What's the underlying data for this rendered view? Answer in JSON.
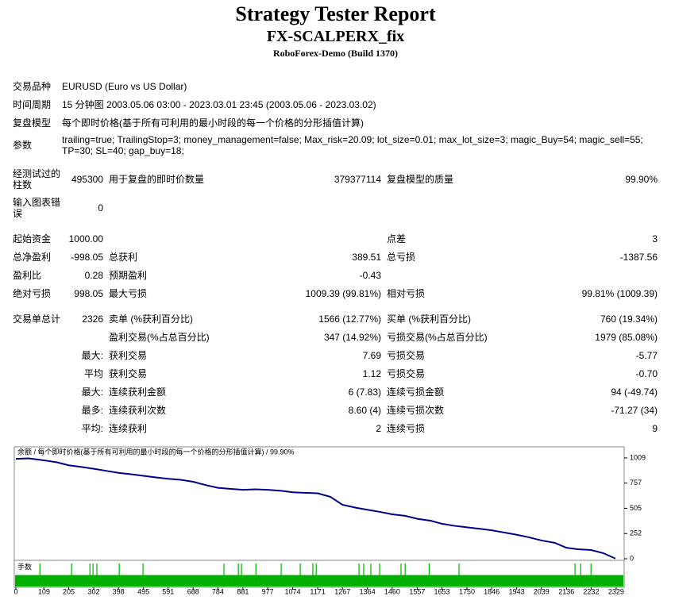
{
  "header": {
    "title": "Strategy Tester Report",
    "subtitle": "FX-SCALPERX_fix",
    "broker": "RoboForex-Demo (Build 1370)"
  },
  "report": {
    "sections": [
      [
        [
          "交易品种",
          "EURUSD (Euro vs US Dollar)"
        ],
        [
          "时间周期",
          "15 分钟图 2003.05.06 03:00 - 2023.03.01 23:45 (2003.05.06 - 2023.03.02)"
        ],
        [
          "复盘模型",
          "每个即时价格(基于所有可利用的最小时段的每一个价格的分形插值计算)"
        ],
        [
          "参数",
          "trailing=true; TrailingStop=3; money_management=false; Max_risk=20.09; lot_size=0.01; max_lot_size=3; magic_Buy=54; magic_sell=55; TP=30; SL=40; gap_buy=18;"
        ]
      ],
      [
        [
          "经测试过的柱数",
          "495300",
          "用于复盘的即时价数量",
          "379377114",
          "复盘模型的质量",
          "99.90%"
        ],
        [
          "输入图表错误",
          "0",
          null,
          null,
          null,
          null
        ]
      ],
      [
        [
          "起始资金",
          "1000.00",
          null,
          null,
          "点差",
          "3"
        ],
        [
          "总净盈利",
          "-998.05",
          "总获利",
          "389.51",
          "总亏损",
          "-1387.56"
        ],
        [
          "盈利比",
          "0.28",
          "预期盈利",
          "-0.43",
          null,
          null
        ],
        [
          "绝对亏损",
          "998.05",
          "最大亏损",
          "1009.39 (99.81%)",
          "相对亏损",
          "99.81% (1009.39)"
        ]
      ],
      [
        [
          "交易单总计",
          "2326",
          "卖单 (%获利百分比)",
          "1566 (12.77%)",
          "买单 (%获利百分比)",
          "760 (19.34%)"
        ],
        [
          null,
          null,
          "盈利交易(%占总百分比)",
          "347 (14.92%)",
          "亏损交易(%占总百分比)",
          "1979 (85.08%)"
        ],
        [
          null,
          "最大:",
          "获利交易",
          "7.69",
          "亏损交易",
          "-5.77"
        ],
        [
          null,
          "平均",
          "获利交易",
          "1.12",
          "亏损交易",
          "-0.70"
        ],
        [
          null,
          "最大:",
          "连续获利金额",
          "6 (7.83)",
          "连续亏损金额",
          "94 (-49.74)"
        ],
        [
          null,
          "最多:",
          "连续获利次数",
          "8.60 (4)",
          "连续亏损次数",
          "-71.27 (34)"
        ],
        [
          null,
          "平均:",
          "连续获利",
          "2",
          "连续亏损",
          "9"
        ]
      ]
    ]
  },
  "chart_data": {
    "type": "line",
    "title": "余额 / 每个即时价格(基于所有可利用的最小时段的每一个价格的分形插值计算) / 99.90%",
    "x": [
      0,
      50,
      109,
      160,
      205,
      250,
      302,
      350,
      398,
      450,
      495,
      540,
      591,
      640,
      688,
      740,
      784,
      830,
      881,
      930,
      977,
      1030,
      1074,
      1120,
      1171,
      1220,
      1267,
      1320,
      1364,
      1410,
      1460,
      1510,
      1557,
      1610,
      1653,
      1700,
      1750,
      1800,
      1846,
      1900,
      1943,
      1990,
      2039,
      2090,
      2136,
      2180,
      2232,
      2280,
      2326
    ],
    "series": [
      {
        "color": "#00008b",
        "values": [
          1000,
          1005,
          985,
          965,
          935,
          920,
          900,
          880,
          860,
          845,
          830,
          815,
          800,
          790,
          770,
          735,
          710,
          700,
          690,
          695,
          690,
          680,
          665,
          660,
          655,
          620,
          540,
          510,
          490,
          470,
          445,
          430,
          400,
          380,
          350,
          330,
          315,
          300,
          285,
          260,
          240,
          215,
          183,
          160,
          110,
          95,
          87,
          55,
          2
        ]
      }
    ],
    "xlim": [
      -6,
      2360
    ],
    "ylim": [
      -16,
      1088
    ],
    "xticks": [
      0,
      109,
      205,
      302,
      398,
      495,
      591,
      688,
      784,
      881,
      977,
      1074,
      1171,
      1267,
      1364,
      1460,
      1557,
      1653,
      1750,
      1846,
      1943,
      2039,
      2136,
      2232,
      2329
    ],
    "yticks": [
      0,
      252,
      505,
      757,
      1009
    ],
    "volume": {
      "title": "手数",
      "color": "#00b000",
      "ylim": [
        0,
        0.02
      ],
      "base": 0.01,
      "x": [
        93,
        216,
        287,
        299,
        314,
        401,
        493,
        807,
        863,
        875,
        931,
        1029,
        1103,
        1152,
        1165,
        1331,
        1349,
        1377,
        1411,
        1494,
        1510,
        1603,
        1719,
        2169,
        2191,
        2231
      ],
      "values": [
        0.02,
        0.02,
        0.02,
        0.02,
        0.02,
        0.02,
        0.02,
        0.02,
        0.02,
        0.02,
        0.02,
        0.02,
        0.02,
        0.02,
        0.02,
        0.02,
        0.02,
        0.02,
        0.02,
        0.02,
        0.02,
        0.02,
        0.02,
        0.02,
        0.02,
        0.02
      ]
    }
  }
}
